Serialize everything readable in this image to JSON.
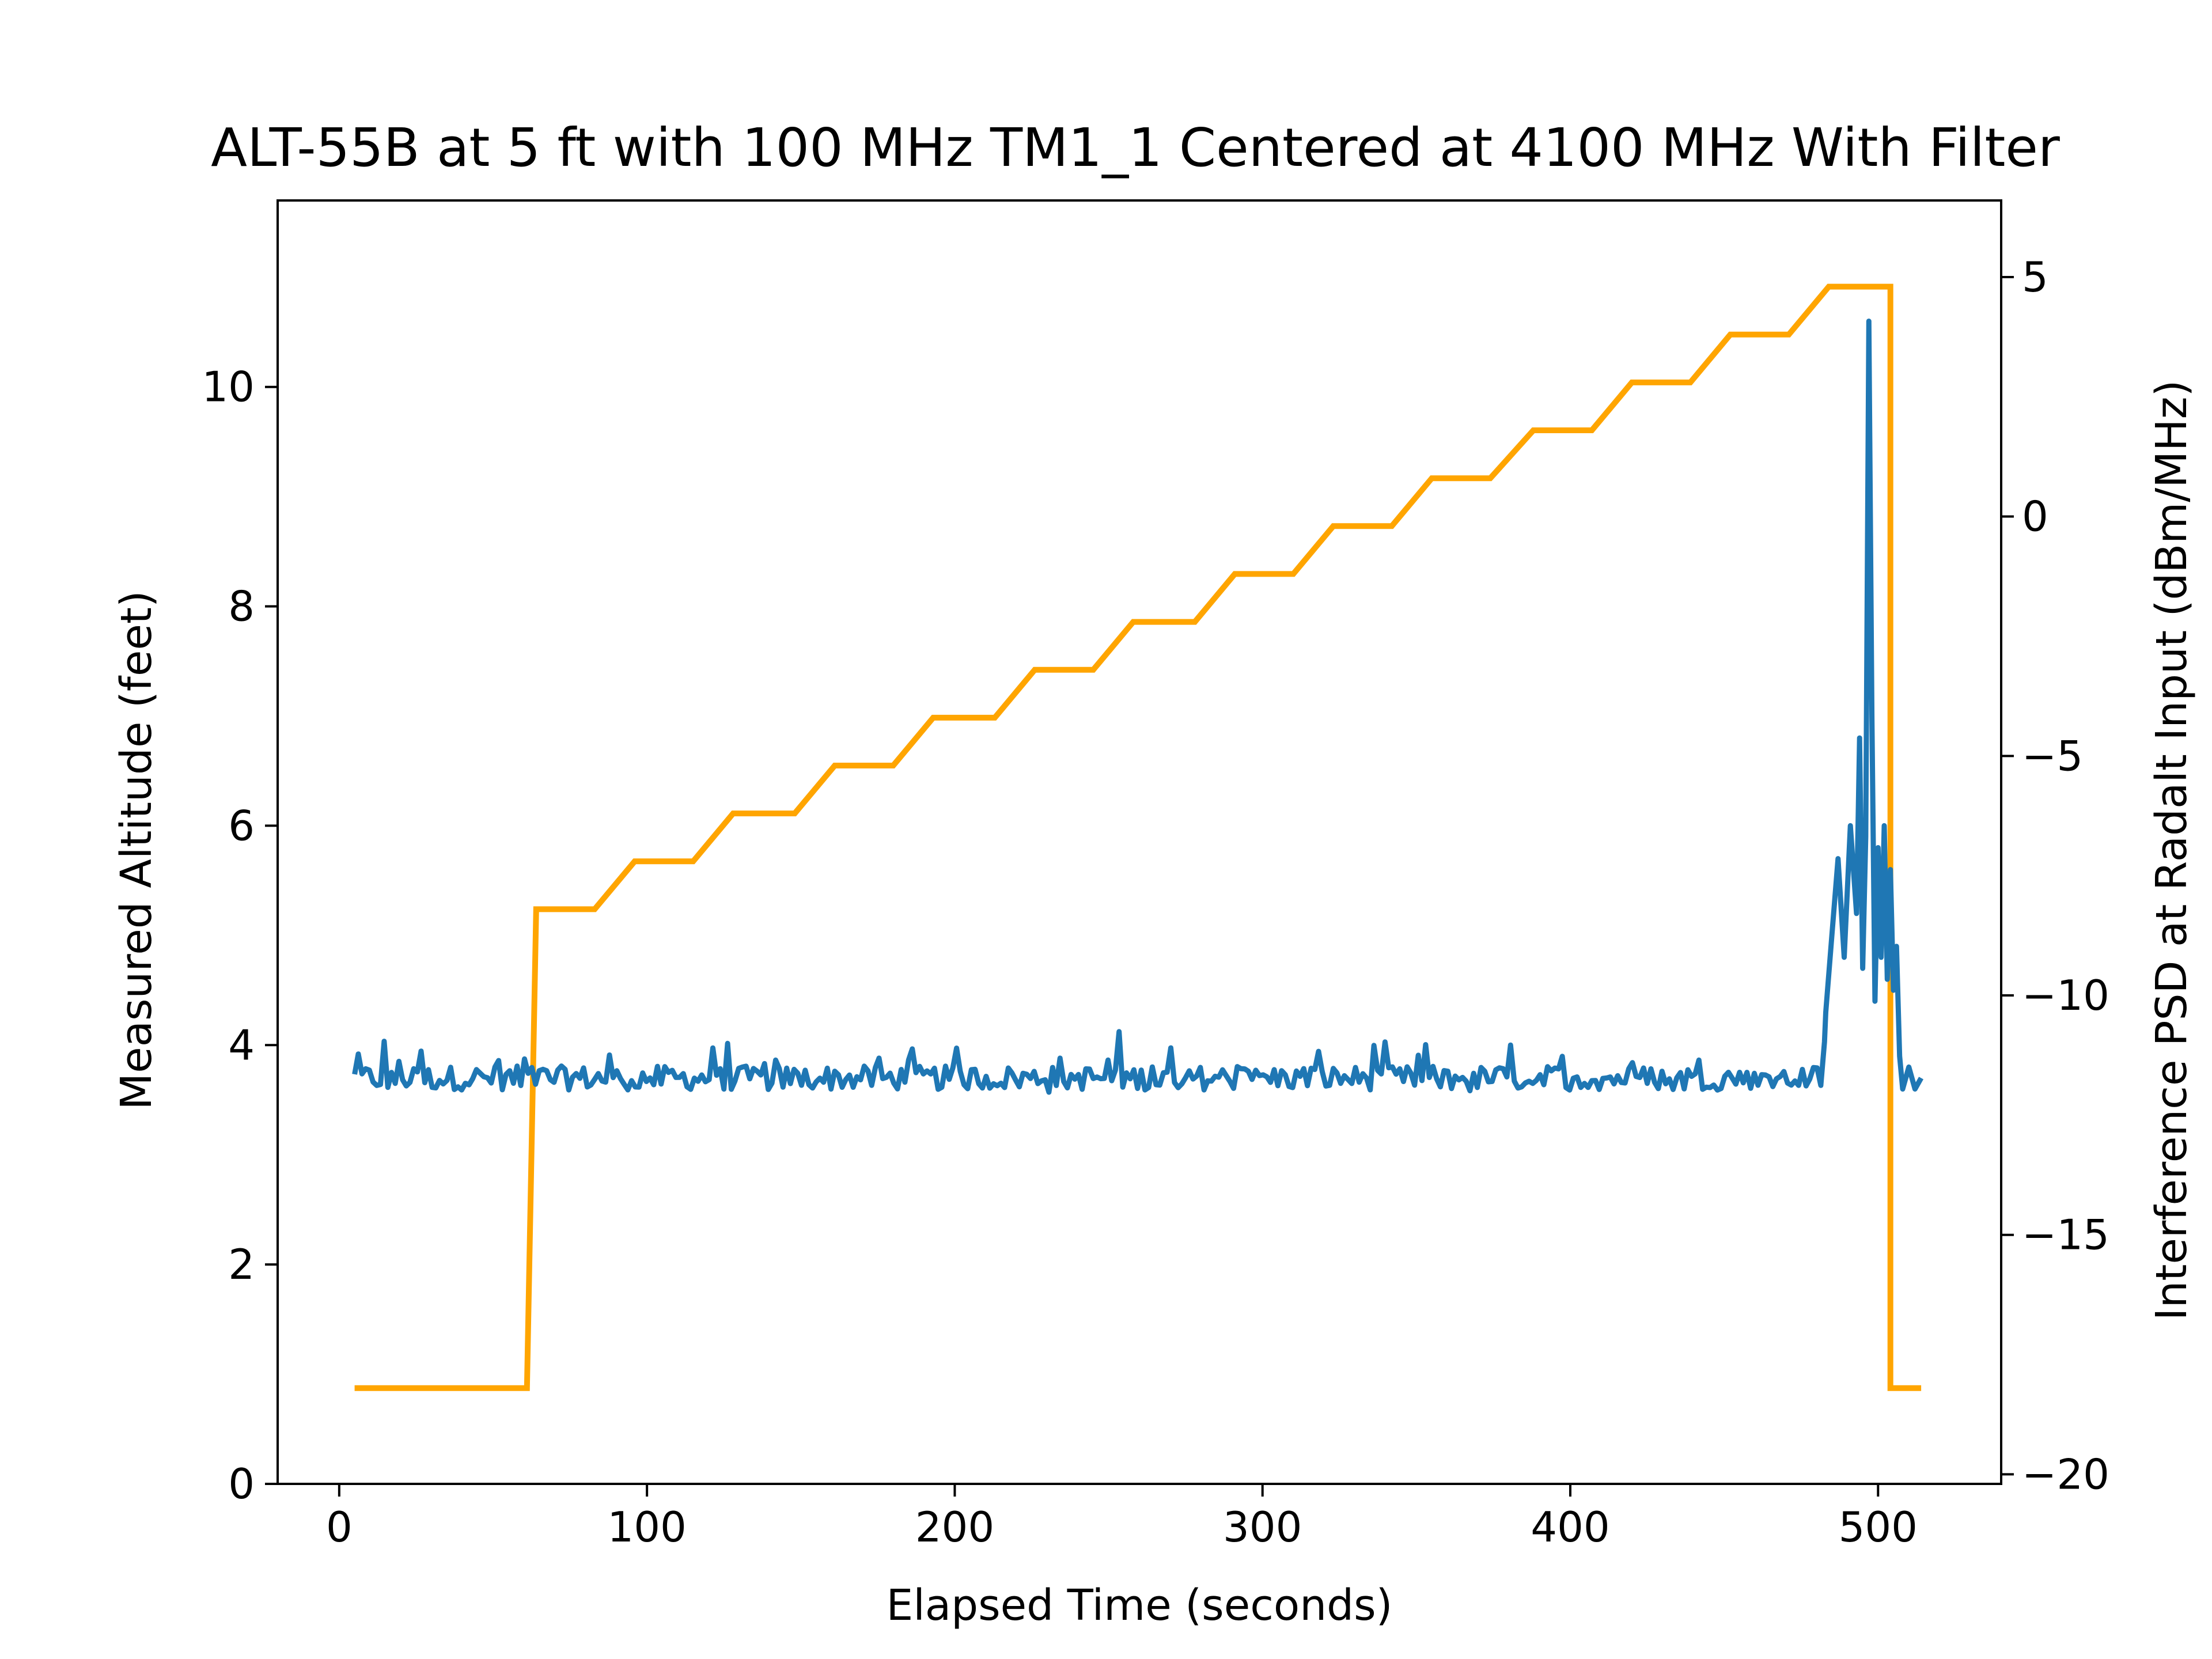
{
  "chart_data": {
    "type": "line",
    "title": "ALT-55B at 5 ft with 100 MHz TM1_1 Centered at 4100 MHz With Filter",
    "xlabel": "Elapsed Time (seconds)",
    "ylabel": "Measured Altitude (feet)",
    "y2label": "Interference PSD at Radalt Input (dBm/MHz)",
    "xlim": [
      -20,
      540
    ],
    "ylim": [
      0,
      11.7
    ],
    "y2lim": [
      -20.2,
      6.6
    ],
    "xticks": [
      0,
      100,
      200,
      300,
      400,
      500
    ],
    "yticks": [
      0,
      2,
      4,
      6,
      8,
      10
    ],
    "y2ticks": [
      -20,
      -15,
      -10,
      -5,
      0,
      5
    ],
    "grid": false,
    "series": [
      {
        "axis": "left",
        "color": "#1f77b4",
        "baseline": 3.7,
        "x": [
          5,
          483,
          485,
          487,
          489,
          491,
          493,
          494,
          495,
          496,
          497,
          498,
          499,
          500,
          501,
          502,
          503,
          504,
          505,
          506,
          507,
          508,
          510,
          512,
          514
        ],
        "values": [
          3.6,
          4.3,
          5.0,
          5.7,
          4.8,
          6.0,
          5.2,
          6.8,
          4.7,
          5.9,
          10.6,
          7.0,
          4.4,
          5.8,
          4.8,
          6.0,
          4.6,
          5.6,
          4.5,
          4.9,
          3.9,
          3.6,
          3.8,
          3.6,
          3.7
        ]
      },
      {
        "axis": "right",
        "color": "#ffa500",
        "step_x": [
          [
            5,
            61
          ],
          [
            64,
            83
          ],
          [
            96,
            115
          ],
          [
            128,
            148
          ],
          [
            161,
            180
          ],
          [
            193,
            213
          ],
          [
            226,
            245
          ],
          [
            258,
            278
          ],
          [
            291,
            310
          ],
          [
            323,
            342
          ],
          [
            355,
            374
          ],
          [
            388,
            407
          ],
          [
            420,
            439
          ],
          [
            452,
            471
          ],
          [
            484,
            504
          ],
          [
            504,
            514
          ]
        ],
        "step_values": [
          -18.2,
          -8.2,
          -7.2,
          -6.2,
          -5.2,
          -4.2,
          -3.2,
          -2.2,
          -1.2,
          -0.2,
          0.8,
          1.8,
          2.8,
          3.8,
          4.8,
          -18.2
        ]
      }
    ]
  }
}
